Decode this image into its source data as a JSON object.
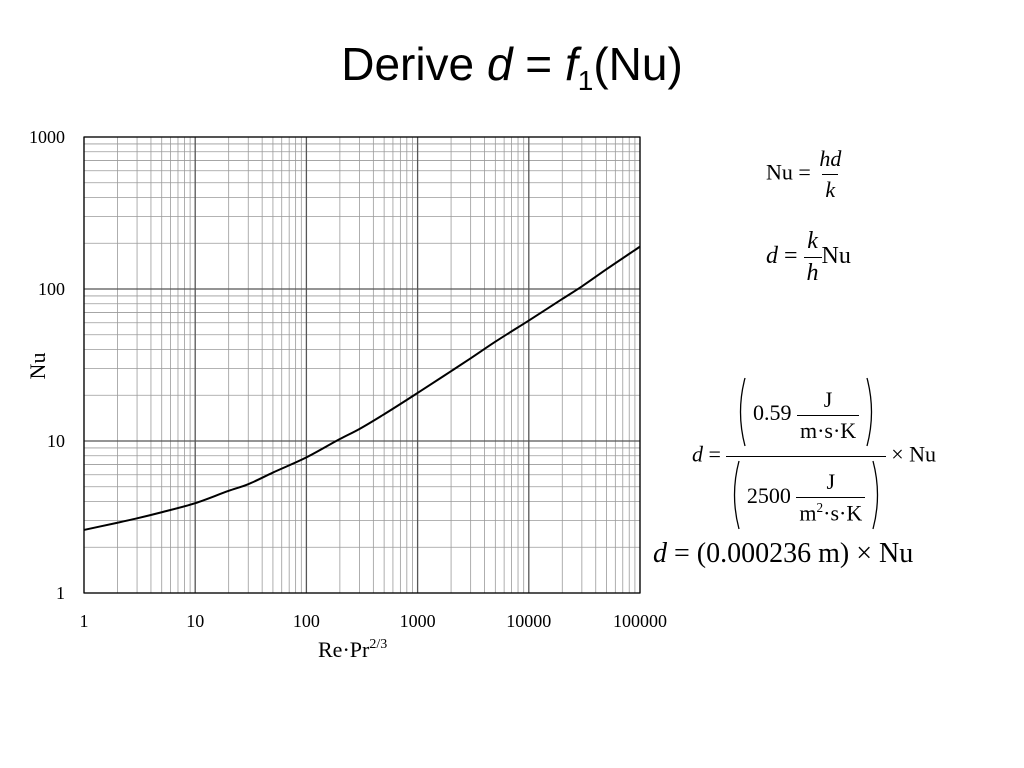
{
  "slide": {
    "title_prefix": "Derive ",
    "title_var": "d",
    "title_eq": " = ",
    "title_func": "f",
    "title_sub": "1",
    "title_arg": "(Nu)"
  },
  "chart_data": {
    "type": "line",
    "title": "",
    "xlabel": "Re·Pr",
    "xlabel_sup": "2/3",
    "ylabel": "Nu",
    "x_scale": "log",
    "y_scale": "log",
    "xlim": [
      1,
      100000
    ],
    "ylim": [
      1,
      1000
    ],
    "x_ticks": [
      "1",
      "10",
      "100",
      "1000",
      "10000",
      "100000"
    ],
    "y_ticks": [
      "1",
      "10",
      "100",
      "1000"
    ],
    "grid": true,
    "legend": "none",
    "series": [
      {
        "color": "#000000",
        "points": [
          [
            1,
            2.6
          ],
          [
            2,
            2.9
          ],
          [
            3,
            3.1
          ],
          [
            5,
            3.4
          ],
          [
            10,
            3.9
          ],
          [
            20,
            4.7
          ],
          [
            30,
            5.2
          ],
          [
            50,
            6.2
          ],
          [
            100,
            7.8
          ],
          [
            200,
            10.3
          ],
          [
            300,
            12
          ],
          [
            500,
            15
          ],
          [
            1000,
            20.7
          ],
          [
            2000,
            28.8
          ],
          [
            3000,
            35
          ],
          [
            5000,
            45
          ],
          [
            10000,
            62
          ],
          [
            20000,
            86
          ],
          [
            30000,
            104
          ],
          [
            50000,
            135
          ],
          [
            100000,
            190
          ]
        ]
      }
    ]
  },
  "equations": {
    "eq1": {
      "lhs": "Nu",
      "op": "=",
      "num": "hd",
      "den": "k"
    },
    "eq2": {
      "lhs": "d",
      "op": "=",
      "num": "k",
      "den": "h",
      "rhs": "Nu"
    },
    "eq3": {
      "lhs": "d",
      "op": "=",
      "num_value": "0.59",
      "num_unit_num": "J",
      "num_unit_den": "m·s·K",
      "den_value": "2500",
      "den_unit_num": "J",
      "den_unit_den_a": "m",
      "den_unit_den_sup": "2",
      "den_unit_den_b": "·s·K",
      "rhs": "× Nu"
    },
    "eq4": {
      "lhs": "d",
      "rest": " = (0.000236 m) × Nu"
    }
  }
}
